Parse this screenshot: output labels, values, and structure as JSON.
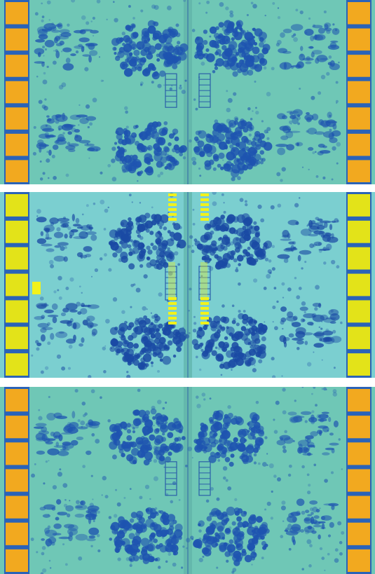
{
  "panels": [
    {
      "id": "top",
      "pad_color": "#f2a91f",
      "substrate_color": "#6fc7b6",
      "cluster_color": "#1e54b0",
      "highlight": false
    },
    {
      "id": "mid",
      "pad_color": "#e3e319",
      "substrate_color": "#7bcfd0",
      "cluster_color": "#1a4aa4",
      "highlight": true
    },
    {
      "id": "bot",
      "pad_color": "#f2a91f",
      "substrate_color": "#6fc7b6",
      "cluster_color": "#1e54b0",
      "highlight": false
    }
  ],
  "colors": {
    "separator": "#ffffff",
    "pad_gap": "#2a63b8",
    "highlight_marks": "#f2f21b"
  }
}
